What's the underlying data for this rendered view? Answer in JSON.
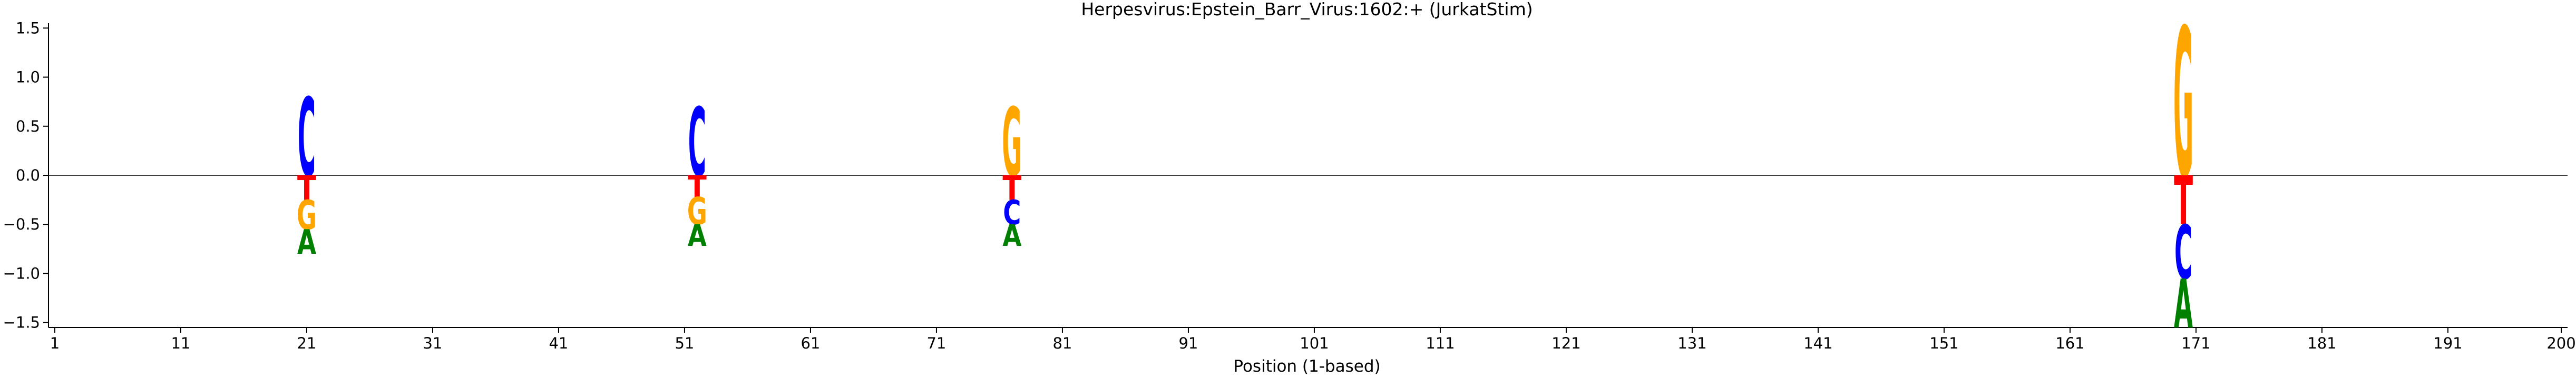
{
  "chart_data": {
    "type": "sequence-logo",
    "title": "Herpesvirus:Epstein_Barr_Virus:1602:+  (JurkatStim)",
    "xlabel": "Position (1-based)",
    "ylabel": "",
    "xlim": [
      0.5,
      200.5
    ],
    "ylim": [
      -1.55,
      1.55
    ],
    "x_ticks": [
      1,
      11,
      21,
      31,
      41,
      51,
      61,
      71,
      81,
      91,
      101,
      111,
      121,
      131,
      141,
      151,
      161,
      171,
      181,
      191,
      200
    ],
    "y_ticks": [
      -1.5,
      -1.0,
      -0.5,
      0.0,
      0.5,
      1.0,
      1.5
    ],
    "y_tick_labels": [
      "−1.5",
      "−1.0",
      "−0.5",
      "0.0",
      "0.5",
      "1.0",
      "1.5"
    ],
    "zero_line": true,
    "grid": false,
    "colors": {
      "A": "#008000",
      "C": "#0000ff",
      "G": "#ffa500",
      "T": "#ff0000"
    },
    "positions": [
      {
        "pos": 21,
        "letters": [
          {
            "base": "C",
            "y0": 0.0,
            "y1": 0.8
          },
          {
            "base": "T",
            "y0": -0.25,
            "y1": 0.0
          },
          {
            "base": "G",
            "y0": -0.55,
            "y1": -0.25
          },
          {
            "base": "A",
            "y0": -0.8,
            "y1": -0.55
          }
        ]
      },
      {
        "pos": 52,
        "letters": [
          {
            "base": "C",
            "y0": 0.0,
            "y1": 0.7
          },
          {
            "base": "T",
            "y0": -0.22,
            "y1": 0.0
          },
          {
            "base": "G",
            "y0": -0.5,
            "y1": -0.22
          },
          {
            "base": "A",
            "y0": -0.72,
            "y1": -0.5
          }
        ]
      },
      {
        "pos": 77,
        "letters": [
          {
            "base": "G",
            "y0": 0.0,
            "y1": 0.7
          },
          {
            "base": "T",
            "y0": -0.25,
            "y1": 0.0
          },
          {
            "base": "C",
            "y0": -0.5,
            "y1": -0.25
          },
          {
            "base": "A",
            "y0": -0.72,
            "y1": -0.5
          }
        ]
      },
      {
        "pos": 170,
        "letters": [
          {
            "base": "G",
            "y0": 0.0,
            "y1": 1.52
          },
          {
            "base": "T",
            "y0": -0.5,
            "y1": 0.0
          },
          {
            "base": "C",
            "y0": -1.05,
            "y1": -0.5
          },
          {
            "base": "A",
            "y0": -1.55,
            "y1": -1.05
          }
        ]
      }
    ]
  }
}
